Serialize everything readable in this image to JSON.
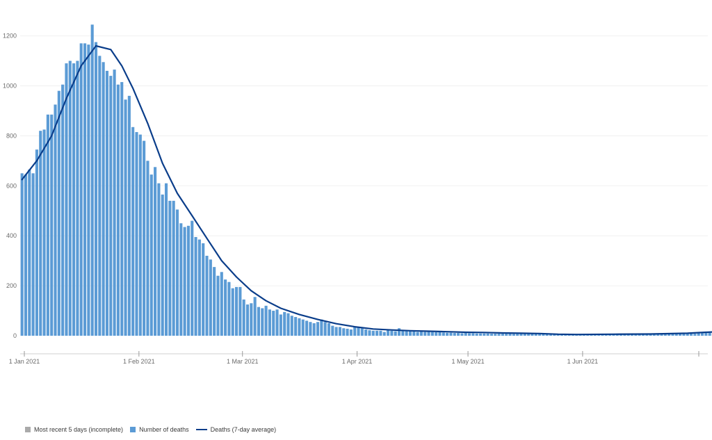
{
  "chart_data": {
    "type": "bar",
    "x_start_date": "2021-01-01",
    "ylim": [
      0,
      1260
    ],
    "yticks": [
      0,
      200,
      400,
      600,
      800,
      1000,
      1200
    ],
    "xticks": [
      {
        "label": "1 Jan 2021"
      },
      {
        "label": "1 Feb 2021"
      },
      {
        "label": "1 Mar 2021"
      },
      {
        "label": "1 Apr 2021"
      },
      {
        "label": "1 May 2021"
      },
      {
        "label": "1 Jun 2021"
      }
    ],
    "gridlines": true,
    "legend_position": "bottom-left",
    "colors": {
      "bar": "#5b9bd5",
      "incomplete": "#aaaaaa",
      "line": "#0a3d8a",
      "grid": "#f0f0f0",
      "axis": "#cfcfcf"
    },
    "series": [
      {
        "name": "Number of deaths",
        "kind": "bar",
        "values": [
          650,
          645,
          665,
          650,
          745,
          820,
          825,
          885,
          885,
          925,
          980,
          1005,
          1090,
          1100,
          1090,
          1100,
          1170,
          1170,
          1165,
          1245,
          1175,
          1120,
          1095,
          1060,
          1040,
          1065,
          1005,
          1015,
          945,
          960,
          835,
          815,
          805,
          780,
          700,
          645,
          675,
          610,
          565,
          610,
          540,
          540,
          505,
          450,
          435,
          440,
          460,
          395,
          385,
          370,
          320,
          305,
          275,
          240,
          255,
          225,
          215,
          190,
          195,
          195,
          145,
          125,
          130,
          155,
          115,
          110,
          120,
          105,
          100,
          105,
          85,
          95,
          90,
          80,
          75,
          70,
          65,
          60,
          55,
          50,
          55,
          65,
          55,
          50,
          40,
          35,
          35,
          30,
          28,
          25,
          35,
          35,
          30,
          25,
          22,
          20,
          20,
          20,
          15,
          22,
          20,
          18,
          30,
          20,
          18,
          22,
          18,
          15,
          18,
          15,
          16,
          15,
          14,
          14,
          13,
          12,
          12,
          11,
          11,
          10,
          12,
          10,
          10,
          9,
          9,
          9,
          9,
          8,
          8,
          8,
          8,
          8,
          8,
          7,
          7,
          7,
          7,
          7,
          8,
          7,
          7,
          6,
          6,
          5,
          5,
          5,
          4,
          4,
          4,
          4,
          5,
          5,
          5,
          5,
          5,
          5,
          5,
          5,
          5,
          5,
          5,
          6,
          6,
          6,
          6,
          6,
          6,
          6,
          5,
          5,
          5,
          5,
          6,
          6,
          7,
          7,
          8,
          8,
          9,
          9,
          10,
          10,
          8,
          12,
          14,
          16,
          12,
          10,
          15,
          15,
          12,
          18,
          20,
          16,
          20,
          18,
          22
        ]
      },
      {
        "name": "Deaths (7-day average)",
        "kind": "line",
        "points": [
          [
            0,
            625
          ],
          [
            4,
            700
          ],
          [
            8,
            800
          ],
          [
            12,
            950
          ],
          [
            16,
            1080
          ],
          [
            20,
            1160
          ],
          [
            24,
            1145
          ],
          [
            27,
            1080
          ],
          [
            30,
            990
          ],
          [
            34,
            850
          ],
          [
            38,
            690
          ],
          [
            42,
            570
          ],
          [
            46,
            480
          ],
          [
            50,
            390
          ],
          [
            54,
            300
          ],
          [
            58,
            235
          ],
          [
            62,
            180
          ],
          [
            66,
            140
          ],
          [
            70,
            110
          ],
          [
            75,
            85
          ],
          [
            80,
            65
          ],
          [
            85,
            48
          ],
          [
            90,
            36
          ],
          [
            95,
            27
          ],
          [
            100,
            23
          ],
          [
            105,
            20
          ],
          [
            110,
            18
          ],
          [
            115,
            16
          ],
          [
            120,
            14
          ],
          [
            125,
            13
          ],
          [
            130,
            11
          ],
          [
            135,
            10
          ],
          [
            140,
            9
          ],
          [
            145,
            6
          ],
          [
            150,
            5
          ],
          [
            160,
            6
          ],
          [
            170,
            7
          ],
          [
            180,
            10
          ],
          [
            185,
            14
          ],
          [
            190,
            17
          ],
          [
            194,
            18
          ],
          [
            197,
            20
          ],
          [
            200,
            20
          ]
        ]
      },
      {
        "name": "Most recent 5 days (incomplete)",
        "kind": "bar",
        "values": []
      }
    ]
  },
  "legend": [
    {
      "label": "Most recent 5 days (incomplete)",
      "type": "square",
      "color": "#aaaaaa"
    },
    {
      "label": "Number of deaths",
      "type": "square",
      "color": "#5b9bd5"
    },
    {
      "label": "Deaths (7-day average)",
      "type": "line",
      "color": "#0a3d8a"
    }
  ]
}
